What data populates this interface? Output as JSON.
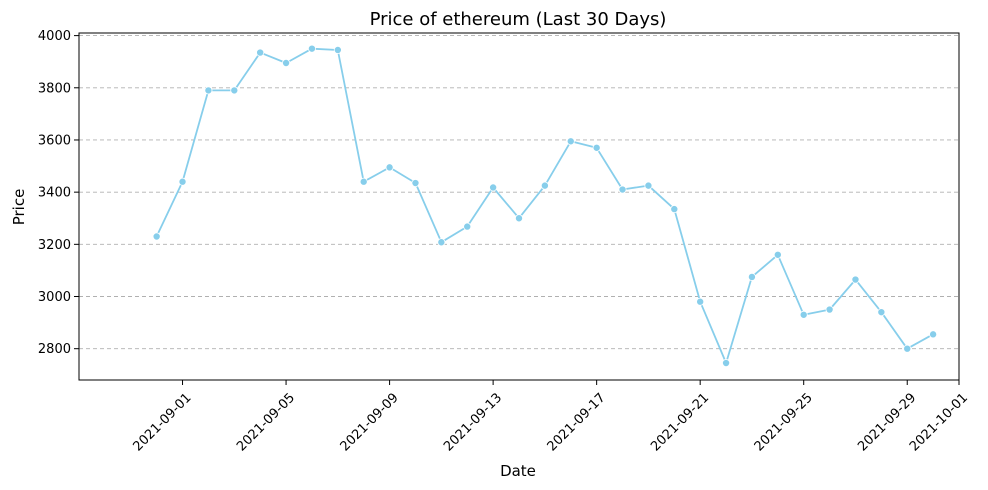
{
  "chart_data": {
    "type": "line",
    "title": "Price of ethereum (Last 30 Days)",
    "xlabel": "Date",
    "ylabel": "Price",
    "color": "#87CEEB",
    "grid": "y-dashed",
    "x_ticks": [
      "2021-09-01",
      "2021-09-05",
      "2021-09-09",
      "2021-09-13",
      "2021-09-17",
      "2021-09-21",
      "2021-09-25",
      "2021-09-29",
      "2021-10-01"
    ],
    "y_ticks": [
      2800,
      3000,
      3200,
      3400,
      3600,
      3800,
      4000
    ],
    "xlim": [
      "2021-08-28",
      "2021-10-01"
    ],
    "ylim": [
      2680,
      4010
    ],
    "series": [
      {
        "x": [
          "2021-08-31",
          "2021-09-01",
          "2021-09-02",
          "2021-09-03",
          "2021-09-04",
          "2021-09-05",
          "2021-09-06",
          "2021-09-07",
          "2021-09-08",
          "2021-09-09",
          "2021-09-10",
          "2021-09-11",
          "2021-09-12",
          "2021-09-13",
          "2021-09-14",
          "2021-09-15",
          "2021-09-16",
          "2021-09-17",
          "2021-09-18",
          "2021-09-19",
          "2021-09-20",
          "2021-09-21",
          "2021-09-22",
          "2021-09-23",
          "2021-09-24",
          "2021-09-25",
          "2021-09-26",
          "2021-09-27",
          "2021-09-28",
          "2021-09-29",
          "2021-09-30"
        ],
        "values": [
          3230,
          3440,
          3790,
          3790,
          3935,
          3895,
          3950,
          3945,
          3440,
          3495,
          3435,
          3208,
          3268,
          3418,
          3300,
          3425,
          3595,
          3570,
          3410,
          3425,
          3335,
          2980,
          2745,
          3075,
          3160,
          2930,
          2950,
          3065,
          2940,
          2800,
          2855
        ]
      }
    ]
  }
}
